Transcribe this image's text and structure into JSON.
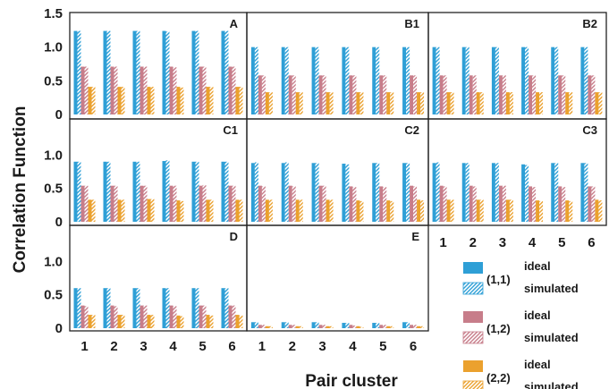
{
  "chart_data": {
    "type": "bar",
    "ylabel": "Correlation Function",
    "xlabel": "Pair cluster",
    "categories": [
      "1",
      "2",
      "3",
      "4",
      "5",
      "6"
    ],
    "ylim": [
      0,
      1.5
    ],
    "yticks": [
      "0",
      "0.5",
      "1.0",
      "1.5"
    ],
    "colors": {
      "(1,1)": "#2e9fd6",
      "(1,2)": "#c77d8a",
      "(2,2)": "#eba12e"
    },
    "legend": {
      "placement": "bottom-right",
      "entries": [
        {
          "pair": "(1,1)",
          "ideal": "ideal",
          "simulated": "simulated"
        },
        {
          "pair": "(1,2)",
          "ideal": "ideal",
          "simulated": "simulated"
        },
        {
          "pair": "(2,2)",
          "ideal": "ideal",
          "simulated": "simulated"
        }
      ]
    },
    "panels": [
      {
        "label": "A",
        "series": [
          {
            "pair": "(1,1)",
            "ideal": [
              1.24,
              1.24,
              1.24,
              1.24,
              1.24,
              1.24
            ],
            "simulated": [
              1.24,
              1.24,
              1.24,
              1.23,
              1.24,
              1.24
            ]
          },
          {
            "pair": "(1,2)",
            "ideal": [
              0.71,
              0.71,
              0.71,
              0.71,
              0.71,
              0.71
            ],
            "simulated": [
              0.71,
              0.71,
              0.71,
              0.7,
              0.71,
              0.71
            ]
          },
          {
            "pair": "(2,2)",
            "ideal": [
              0.41,
              0.41,
              0.41,
              0.41,
              0.41,
              0.41
            ],
            "simulated": [
              0.41,
              0.41,
              0.41,
              0.4,
              0.41,
              0.41
            ]
          }
        ]
      },
      {
        "label": "B1",
        "series": [
          {
            "pair": "(1,1)",
            "ideal": [
              1.0,
              1.0,
              1.0,
              1.0,
              1.0,
              1.0
            ],
            "simulated": [
              1.0,
              1.0,
              1.0,
              1.0,
              1.0,
              1.0
            ]
          },
          {
            "pair": "(1,2)",
            "ideal": [
              0.58,
              0.58,
              0.58,
              0.58,
              0.58,
              0.58
            ],
            "simulated": [
              0.58,
              0.58,
              0.58,
              0.58,
              0.58,
              0.58
            ]
          },
          {
            "pair": "(2,2)",
            "ideal": [
              0.33,
              0.33,
              0.33,
              0.33,
              0.33,
              0.33
            ],
            "simulated": [
              0.33,
              0.33,
              0.33,
              0.33,
              0.33,
              0.33
            ]
          }
        ]
      },
      {
        "label": "B2",
        "series": [
          {
            "pair": "(1,1)",
            "ideal": [
              1.0,
              1.0,
              1.0,
              1.0,
              1.0,
              1.0
            ],
            "simulated": [
              1.0,
              1.0,
              1.0,
              1.0,
              1.0,
              1.0
            ]
          },
          {
            "pair": "(1,2)",
            "ideal": [
              0.58,
              0.58,
              0.58,
              0.58,
              0.58,
              0.58
            ],
            "simulated": [
              0.58,
              0.58,
              0.58,
              0.58,
              0.58,
              0.58
            ]
          },
          {
            "pair": "(2,2)",
            "ideal": [
              0.33,
              0.33,
              0.33,
              0.33,
              0.33,
              0.33
            ],
            "simulated": [
              0.33,
              0.33,
              0.33,
              0.33,
              0.33,
              0.33
            ]
          }
        ]
      },
      {
        "label": "C1",
        "series": [
          {
            "pair": "(1,1)",
            "ideal": [
              0.9,
              0.9,
              0.9,
              0.91,
              0.9,
              0.9
            ],
            "simulated": [
              0.9,
              0.9,
              0.9,
              0.92,
              0.9,
              0.9
            ]
          },
          {
            "pair": "(1,2)",
            "ideal": [
              0.54,
              0.54,
              0.54,
              0.54,
              0.54,
              0.54
            ],
            "simulated": [
              0.54,
              0.54,
              0.54,
              0.54,
              0.55,
              0.54
            ]
          },
          {
            "pair": "(2,2)",
            "ideal": [
              0.33,
              0.33,
              0.34,
              0.32,
              0.33,
              0.33
            ],
            "simulated": [
              0.33,
              0.33,
              0.34,
              0.31,
              0.33,
              0.33
            ]
          }
        ]
      },
      {
        "label": "C2",
        "series": [
          {
            "pair": "(1,1)",
            "ideal": [
              0.88,
              0.88,
              0.88,
              0.87,
              0.88,
              0.88
            ],
            "simulated": [
              0.89,
              0.89,
              0.88,
              0.86,
              0.88,
              0.88
            ]
          },
          {
            "pair": "(1,2)",
            "ideal": [
              0.54,
              0.54,
              0.54,
              0.53,
              0.53,
              0.54
            ],
            "simulated": [
              0.53,
              0.53,
              0.54,
              0.52,
              0.52,
              0.53
            ]
          },
          {
            "pair": "(2,2)",
            "ideal": [
              0.33,
              0.33,
              0.33,
              0.32,
              0.32,
              0.33
            ],
            "simulated": [
              0.33,
              0.33,
              0.33,
              0.31,
              0.31,
              0.32
            ]
          }
        ]
      },
      {
        "label": "C3",
        "series": [
          {
            "pair": "(1,1)",
            "ideal": [
              0.88,
              0.88,
              0.88,
              0.86,
              0.88,
              0.88
            ],
            "simulated": [
              0.89,
              0.88,
              0.88,
              0.85,
              0.88,
              0.88
            ]
          },
          {
            "pair": "(1,2)",
            "ideal": [
              0.54,
              0.54,
              0.54,
              0.53,
              0.53,
              0.53
            ],
            "simulated": [
              0.53,
              0.53,
              0.54,
              0.52,
              0.52,
              0.53
            ]
          },
          {
            "pair": "(2,2)",
            "ideal": [
              0.33,
              0.33,
              0.33,
              0.32,
              0.32,
              0.33
            ],
            "simulated": [
              0.33,
              0.33,
              0.33,
              0.31,
              0.31,
              0.32
            ]
          }
        ]
      },
      {
        "label": "D",
        "series": [
          {
            "pair": "(1,1)",
            "ideal": [
              0.6,
              0.6,
              0.6,
              0.6,
              0.6,
              0.6
            ],
            "simulated": [
              0.6,
              0.6,
              0.6,
              0.6,
              0.6,
              0.6
            ]
          },
          {
            "pair": "(1,2)",
            "ideal": [
              0.34,
              0.34,
              0.34,
              0.34,
              0.34,
              0.34
            ],
            "simulated": [
              0.33,
              0.33,
              0.34,
              0.33,
              0.34,
              0.34
            ]
          },
          {
            "pair": "(2,2)",
            "ideal": [
              0.2,
              0.2,
              0.2,
              0.19,
              0.2,
              0.2
            ],
            "simulated": [
              0.2,
              0.2,
              0.2,
              0.18,
              0.19,
              0.19
            ]
          }
        ]
      },
      {
        "label": "E",
        "series": [
          {
            "pair": "(1,1)",
            "ideal": [
              0.09,
              0.09,
              0.09,
              0.08,
              0.08,
              0.09
            ],
            "simulated": [
              0.09,
              0.09,
              0.09,
              0.08,
              0.08,
              0.09
            ]
          },
          {
            "pair": "(1,2)",
            "ideal": [
              0.05,
              0.05,
              0.05,
              0.05,
              0.05,
              0.05
            ],
            "simulated": [
              0.05,
              0.05,
              0.05,
              0.04,
              0.05,
              0.05
            ]
          },
          {
            "pair": "(2,2)",
            "ideal": [
              0.03,
              0.03,
              0.03,
              0.03,
              0.03,
              0.03
            ],
            "simulated": [
              0.03,
              0.03,
              0.03,
              0.02,
              0.03,
              0.03
            ]
          }
        ]
      }
    ]
  }
}
